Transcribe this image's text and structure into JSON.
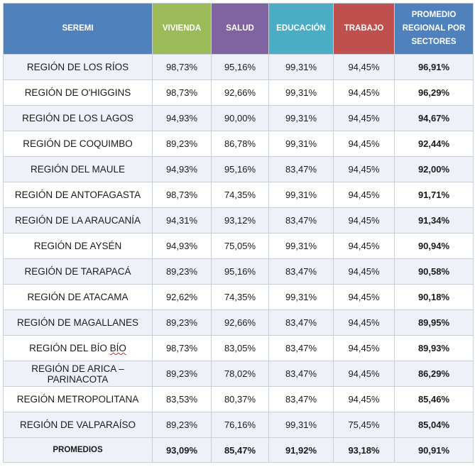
{
  "header": {
    "seremi": "SEREMI",
    "vivienda": "VIVIENDA",
    "salud": "SALUD",
    "educacion": "EDUCACIÓN",
    "trabajo": "TRABAJO",
    "promedio": "PROMEDIO REGIONAL POR SECTORES"
  },
  "colors": {
    "seremi": "#4f81bd",
    "vivienda": "#9bbb59",
    "salud": "#8064a2",
    "educacion": "#4bacc6",
    "trabajo": "#c0504d",
    "promedio": "#4f81bd"
  },
  "rows": [
    {
      "region": "REGIÓN DE LOS RÍOS",
      "vivienda": "98,73%",
      "salud": "95,16%",
      "educacion": "99,31%",
      "trabajo": "94,45%",
      "promedio": "96,91%"
    },
    {
      "region": "REGIÓN DE O'HIGGINS",
      "vivienda": "98,73%",
      "salud": "92,66%",
      "educacion": "99,31%",
      "trabajo": "94,45%",
      "promedio": "96,29%"
    },
    {
      "region": "REGIÓN DE LOS LAGOS",
      "vivienda": "94,93%",
      "salud": "90,00%",
      "educacion": "99,31%",
      "trabajo": "94,45%",
      "promedio": "94,67%"
    },
    {
      "region": "REGIÓN DE COQUIMBO",
      "vivienda": "89,23%",
      "salud": "86,78%",
      "educacion": "99,31%",
      "trabajo": "94,45%",
      "promedio": "92,44%"
    },
    {
      "region": "REGIÓN DEL MAULE",
      "vivienda": "94,93%",
      "salud": "95,16%",
      "educacion": "83,47%",
      "trabajo": "94,45%",
      "promedio": "92,00%"
    },
    {
      "region": "REGIÓN DE ANTOFAGASTA",
      "vivienda": "98,73%",
      "salud": "74,35%",
      "educacion": "99,31%",
      "trabajo": "94,45%",
      "promedio": "91,71%"
    },
    {
      "region": "REGIÓN DE LA ARAUCANÍA",
      "vivienda": "94,31%",
      "salud": "93,12%",
      "educacion": "83,47%",
      "trabajo": "94,45%",
      "promedio": "91,34%"
    },
    {
      "region": "REGIÓN DE AYSÉN",
      "vivienda": "94,93%",
      "salud": "75,05%",
      "educacion": "99,31%",
      "trabajo": "94,45%",
      "promedio": "90,94%"
    },
    {
      "region": "REGIÓN DE TARAPACÁ",
      "vivienda": "89,23%",
      "salud": "95,16%",
      "educacion": "83,47%",
      "trabajo": "94,45%",
      "promedio": "90,58%"
    },
    {
      "region": "REGIÓN DE ATACAMA",
      "vivienda": "92,62%",
      "salud": "74,35%",
      "educacion": "99,31%",
      "trabajo": "94,45%",
      "promedio": "90,18%"
    },
    {
      "region": "REGIÓN DE MAGALLANES",
      "vivienda": "89,23%",
      "salud": "92,66%",
      "educacion": "83,47%",
      "trabajo": "94,45%",
      "promedio": "89,95%"
    },
    {
      "region_prefix": "REGIÓN DEL BÍO ",
      "region_suffix": "BÍO",
      "vivienda": "98,73%",
      "salud": "83,05%",
      "educacion": "83,47%",
      "trabajo": "94,45%",
      "promedio": "89,93%"
    },
    {
      "region": "REGIÓN DE ARICA – PARINACOTA",
      "vivienda": "89,23%",
      "salud": "78,02%",
      "educacion": "83,47%",
      "trabajo": "94,45%",
      "promedio": "86,29%"
    },
    {
      "region": "REGIÓN METROPOLITANA",
      "vivienda": "83,53%",
      "salud": "80,37%",
      "educacion": "83,47%",
      "trabajo": "94,45%",
      "promedio": "85,46%"
    },
    {
      "region": "REGIÓN DE VALPARAÍSO",
      "vivienda": "89,23%",
      "salud": "76,16%",
      "educacion": "99,31%",
      "trabajo": "75,45%",
      "promedio": "85,04%"
    }
  ],
  "totals": {
    "label": "PROMEDIOS",
    "vivienda": "93,09%",
    "salud": "85,47%",
    "educacion": "91,92%",
    "trabajo": "93,18%",
    "promedio": "90,91%"
  }
}
